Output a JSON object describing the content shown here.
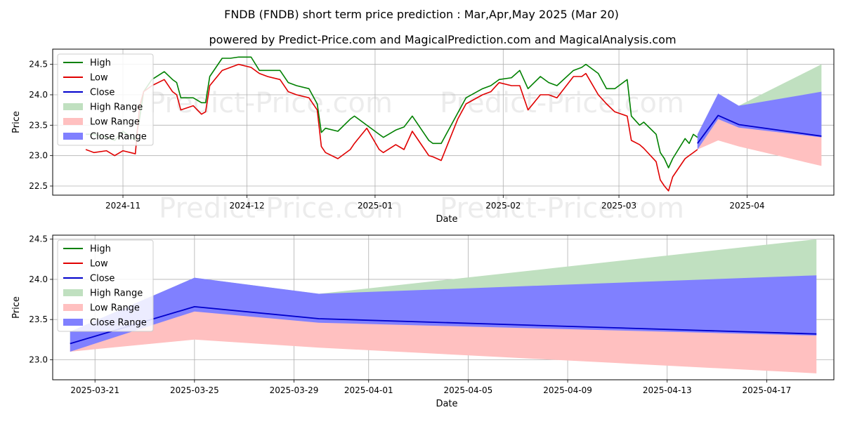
{
  "title": "FNDB (FNDB) short term price prediction : Mar,Apr,May 2025 (Mar 20)",
  "subtitle": "powered by Predict-Price.com and MagicalPrediction.com and MagicalAnalysis.com",
  "watermark": "Predict-Price.com",
  "colors": {
    "high": "#008000",
    "low": "#e00000",
    "close": "#0000cc",
    "high_range": "#c0e0c0",
    "low_range": "#ffc0c0",
    "close_range": "#8080ff"
  },
  "chart_data": [
    {
      "type": "line",
      "xlabel": "Date",
      "ylabel": "Price",
      "ylim": [
        22.35,
        24.75
      ],
      "xlim": [
        "2024-10-15",
        "2025-04-22"
      ],
      "x_ticks": [
        "2024-11",
        "2024-12",
        "2025-01",
        "2025-02",
        "2025-03",
        "2025-04"
      ],
      "y_ticks": [
        "22.5",
        "23.0",
        "23.5",
        "24.0",
        "24.5"
      ],
      "grid": true,
      "legend": "top-left",
      "legend_entries": [
        "High",
        "Low",
        "Close",
        "High Range",
        "Low Range",
        "Close Range"
      ],
      "series": [
        {
          "name": "High",
          "x": [
            "2024-10-23",
            "2024-10-25",
            "2024-10-28",
            "2024-10-30",
            "2024-11-01",
            "2024-11-04",
            "2024-11-05",
            "2024-11-06",
            "2024-11-08",
            "2024-11-11",
            "2024-11-13",
            "2024-11-14",
            "2024-11-15",
            "2024-11-18",
            "2024-11-20",
            "2024-11-21",
            "2024-11-22",
            "2024-11-25",
            "2024-11-27",
            "2024-11-29",
            "2024-12-02",
            "2024-12-04",
            "2024-12-06",
            "2024-12-09",
            "2024-12-11",
            "2024-12-13",
            "2024-12-16",
            "2024-12-18",
            "2024-12-19",
            "2024-12-20",
            "2024-12-23",
            "2024-12-26",
            "2024-12-27",
            "2024-12-30",
            "2025-01-02",
            "2025-01-03",
            "2025-01-06",
            "2025-01-08",
            "2025-01-10",
            "2025-01-13",
            "2025-01-14",
            "2025-01-15",
            "2025-01-17",
            "2025-01-21",
            "2025-01-23",
            "2025-01-27",
            "2025-01-29",
            "2025-01-31",
            "2025-02-03",
            "2025-02-05",
            "2025-02-07",
            "2025-02-10",
            "2025-02-12",
            "2025-02-14",
            "2025-02-18",
            "2025-02-20",
            "2025-02-21",
            "2025-02-24",
            "2025-02-26",
            "2025-02-28",
            "2025-03-03",
            "2025-03-04",
            "2025-03-06",
            "2025-03-07",
            "2025-03-10",
            "2025-03-11",
            "2025-03-12",
            "2025-03-13",
            "2025-03-14",
            "2025-03-17",
            "2025-03-18",
            "2025-03-19",
            "2025-03-20"
          ],
          "values": [
            23.35,
            23.35,
            23.3,
            23.25,
            23.4,
            23.25,
            23.6,
            24.05,
            24.25,
            24.38,
            24.25,
            24.2,
            23.95,
            23.95,
            23.87,
            23.87,
            24.3,
            24.6,
            24.6,
            24.62,
            24.62,
            24.4,
            24.4,
            24.4,
            24.2,
            24.15,
            24.1,
            23.85,
            23.38,
            23.45,
            23.4,
            23.6,
            23.65,
            23.5,
            23.35,
            23.3,
            23.42,
            23.47,
            23.65,
            23.35,
            23.25,
            23.2,
            23.2,
            23.7,
            23.95,
            24.1,
            24.15,
            24.25,
            24.28,
            24.4,
            24.1,
            24.3,
            24.2,
            24.15,
            24.4,
            24.45,
            24.5,
            24.35,
            24.1,
            24.1,
            24.25,
            23.65,
            23.5,
            23.55,
            23.35,
            23.05,
            22.95,
            22.8,
            22.95,
            23.28,
            23.2,
            23.35,
            23.3
          ]
        },
        {
          "name": "Low",
          "x": [
            "2024-10-23",
            "2024-10-25",
            "2024-10-28",
            "2024-10-30",
            "2024-11-01",
            "2024-11-04",
            "2024-11-05",
            "2024-11-06",
            "2024-11-08",
            "2024-11-11",
            "2024-11-13",
            "2024-11-14",
            "2024-11-15",
            "2024-11-18",
            "2024-11-20",
            "2024-11-21",
            "2024-11-22",
            "2024-11-25",
            "2024-11-27",
            "2024-11-29",
            "2024-12-02",
            "2024-12-04",
            "2024-12-06",
            "2024-12-09",
            "2024-12-11",
            "2024-12-13",
            "2024-12-16",
            "2024-12-18",
            "2024-12-19",
            "2024-12-20",
            "2024-12-23",
            "2024-12-26",
            "2024-12-27",
            "2024-12-30",
            "2025-01-02",
            "2025-01-03",
            "2025-01-06",
            "2025-01-08",
            "2025-01-10",
            "2025-01-13",
            "2025-01-14",
            "2025-01-15",
            "2025-01-17",
            "2025-01-21",
            "2025-01-23",
            "2025-01-27",
            "2025-01-29",
            "2025-01-31",
            "2025-02-03",
            "2025-02-05",
            "2025-02-07",
            "2025-02-10",
            "2025-02-12",
            "2025-02-14",
            "2025-02-18",
            "2025-02-20",
            "2025-02-21",
            "2025-02-24",
            "2025-02-26",
            "2025-02-28",
            "2025-03-03",
            "2025-03-04",
            "2025-03-06",
            "2025-03-07",
            "2025-03-10",
            "2025-03-11",
            "2025-03-12",
            "2025-03-13",
            "2025-03-14",
            "2025-03-17",
            "2025-03-18",
            "2025-03-19",
            "2025-03-20"
          ],
          "values": [
            23.1,
            23.05,
            23.08,
            23.0,
            23.08,
            23.03,
            23.8,
            24.05,
            24.15,
            24.25,
            24.05,
            24.0,
            23.75,
            23.82,
            23.68,
            23.72,
            24.15,
            24.4,
            24.45,
            24.5,
            24.45,
            24.35,
            24.3,
            24.25,
            24.05,
            24.0,
            23.95,
            23.75,
            23.15,
            23.05,
            22.95,
            23.1,
            23.2,
            23.45,
            23.1,
            23.05,
            23.18,
            23.1,
            23.4,
            23.1,
            23.0,
            22.98,
            22.92,
            23.6,
            23.85,
            24.0,
            24.05,
            24.2,
            24.15,
            24.15,
            23.75,
            24.0,
            24.0,
            23.95,
            24.3,
            24.3,
            24.35,
            24.0,
            23.85,
            23.72,
            23.65,
            23.25,
            23.18,
            23.12,
            22.9,
            22.6,
            22.5,
            22.42,
            22.65,
            22.95,
            23.0,
            23.05,
            23.1
          ]
        },
        {
          "name": "Close",
          "x": [
            "2025-03-20",
            "2025-03-25",
            "2025-03-30",
            "2025-04-19"
          ],
          "values": [
            23.2,
            23.66,
            23.51,
            23.32
          ]
        }
      ],
      "ranges": [
        {
          "name": "High Range",
          "x": [
            "2025-03-20",
            "2025-03-25",
            "2025-03-30",
            "2025-04-19"
          ],
          "upper": [
            23.35,
            24.02,
            23.82,
            24.5
          ],
          "lower": [
            23.2,
            23.66,
            23.51,
            23.32
          ]
        },
        {
          "name": "Low Range",
          "x": [
            "2025-03-20",
            "2025-03-25",
            "2025-03-30",
            "2025-04-19"
          ],
          "upper": [
            23.2,
            23.66,
            23.51,
            23.32
          ],
          "lower": [
            23.1,
            23.25,
            23.15,
            22.83
          ]
        },
        {
          "name": "Close Range",
          "x": [
            "2025-03-20",
            "2025-03-25",
            "2025-03-30",
            "2025-04-19"
          ],
          "upper": [
            23.35,
            24.02,
            23.82,
            24.05
          ],
          "lower": [
            23.1,
            23.6,
            23.46,
            23.3
          ]
        }
      ]
    },
    {
      "type": "line",
      "xlabel": "Date",
      "ylabel": "Price",
      "ylim": [
        22.75,
        24.55
      ],
      "xlim": [
        "2025-03-19.3",
        "2025-04-19.7"
      ],
      "x_ticks": [
        "2025-03-21",
        "2025-03-25",
        "2025-03-29",
        "2025-04-01",
        "2025-04-05",
        "2025-04-09",
        "2025-04-13",
        "2025-04-17"
      ],
      "y_ticks": [
        "23.0",
        "23.5",
        "24.0",
        "24.5"
      ],
      "grid": true,
      "legend": "top-left",
      "legend_entries": [
        "High",
        "Low",
        "Close",
        "High Range",
        "Low Range",
        "Close Range"
      ],
      "series": [
        {
          "name": "Close",
          "x": [
            "2025-03-20",
            "2025-03-25",
            "2025-03-30",
            "2025-04-19"
          ],
          "values": [
            23.2,
            23.66,
            23.51,
            23.32
          ]
        }
      ],
      "ranges": [
        {
          "name": "High Range",
          "x": [
            "2025-03-20",
            "2025-03-25",
            "2025-03-30",
            "2025-04-19"
          ],
          "upper": [
            23.35,
            24.02,
            23.82,
            24.5
          ],
          "lower": [
            23.2,
            23.66,
            23.51,
            23.32
          ]
        },
        {
          "name": "Low Range",
          "x": [
            "2025-03-20",
            "2025-03-25",
            "2025-03-30",
            "2025-04-19"
          ],
          "upper": [
            23.2,
            23.66,
            23.51,
            23.32
          ],
          "lower": [
            23.1,
            23.25,
            23.15,
            22.83
          ]
        },
        {
          "name": "Close Range",
          "x": [
            "2025-03-20",
            "2025-03-25",
            "2025-03-30",
            "2025-04-19"
          ],
          "upper": [
            23.35,
            24.02,
            23.82,
            24.05
          ],
          "lower": [
            23.1,
            23.6,
            23.46,
            23.3
          ]
        }
      ]
    }
  ]
}
